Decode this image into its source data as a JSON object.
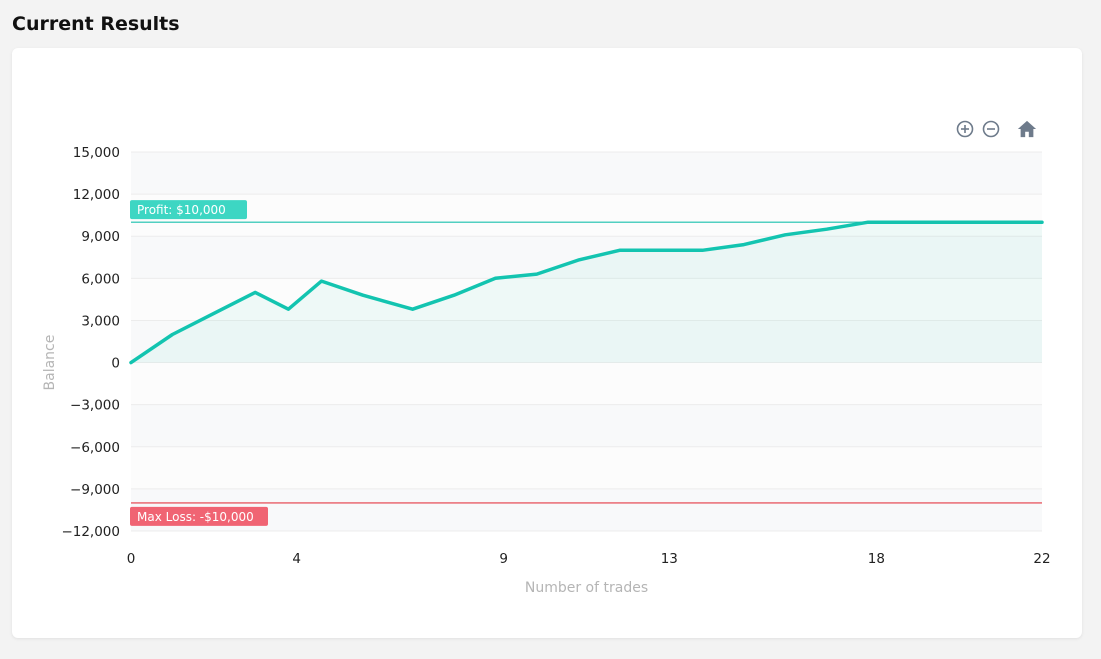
{
  "page": {
    "title": "Current Results"
  },
  "toolbar": {
    "icons": [
      "zoom-in-icon",
      "zoom-out-icon",
      "home-icon"
    ],
    "icon_color": "#6e7b8b"
  },
  "chart_data": {
    "type": "line",
    "xlabel": "Number of trades",
    "ylabel": "Balance",
    "xlim": [
      0,
      22
    ],
    "ylim": [
      -12000,
      15000
    ],
    "x_ticks": [
      0,
      4,
      9,
      13,
      18,
      22
    ],
    "x_tick_labels": [
      "0",
      "4",
      "9",
      "13",
      "18",
      "22"
    ],
    "y_ticks": [
      15000,
      12000,
      9000,
      6000,
      3000,
      0,
      -3000,
      -6000,
      -9000,
      -12000
    ],
    "y_tick_labels": [
      "15,000",
      "12,000",
      "9,000",
      "6,000",
      "3,000",
      "0",
      "−3,000",
      "−6,000",
      "−9,000",
      "−12,000"
    ],
    "grid": "horizontal",
    "series": [
      {
        "color": "#13c4b0",
        "x": [
          0,
          1,
          2,
          3,
          3.8,
          4.6,
          5.6,
          6.8,
          7.8,
          8.8,
          9.8,
          10.8,
          11.8,
          12.8,
          13.8,
          14.8,
          15.8,
          16.8,
          17.8,
          18.8,
          19.8,
          20.8,
          22
        ],
        "values": [
          0,
          2000,
          3500,
          5000,
          3800,
          5800,
          4800,
          3800,
          4800,
          6000,
          6300,
          7300,
          8000,
          8000,
          8000,
          8400,
          9100,
          9500,
          10000,
          10000,
          10000,
          10000,
          10000
        ]
      }
    ],
    "annotations": [
      {
        "y": 10000,
        "label": "Profit: $10,000",
        "color": "#3dd6c3",
        "line_color": "#19c0ad"
      },
      {
        "y": -10000,
        "label": "Max Loss: -$10,000",
        "color": "#f06473",
        "line_color": "#e43a45"
      }
    ]
  }
}
